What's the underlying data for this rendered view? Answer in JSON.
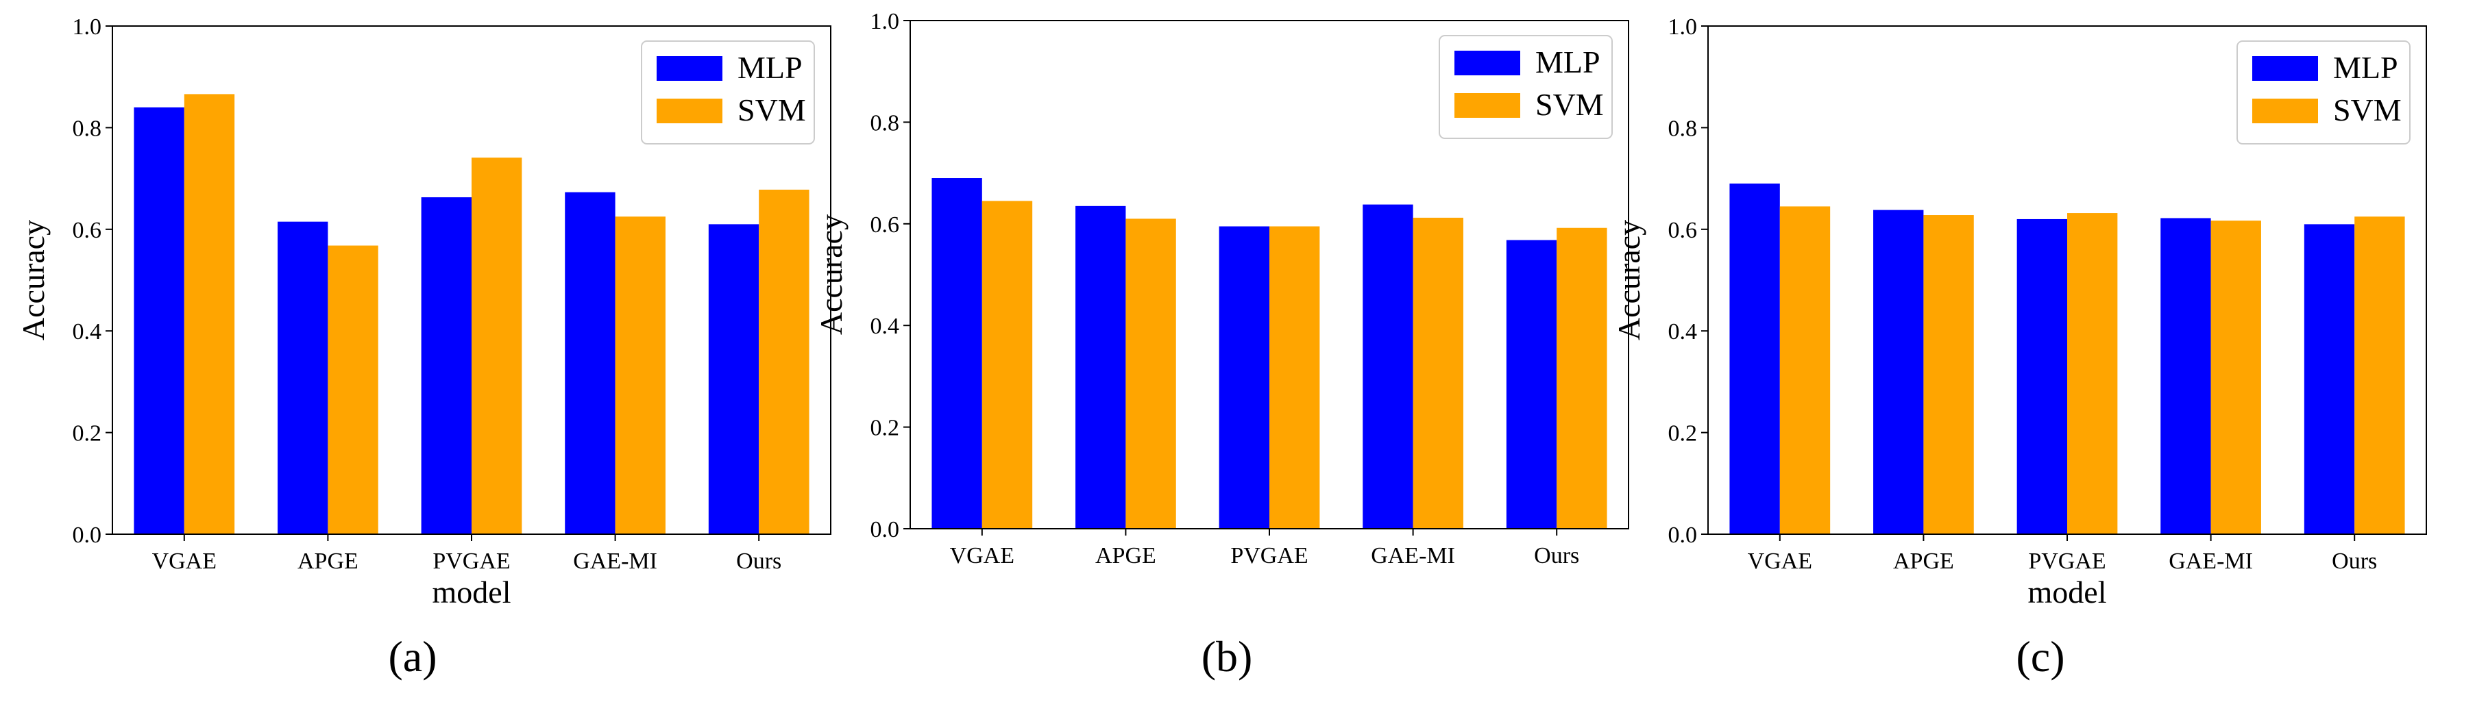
{
  "chart_data": [
    {
      "type": "bar",
      "caption": "(a)",
      "categories": [
        "VGAE",
        "APGE",
        "PVGAE",
        "GAE-MI",
        "Ours"
      ],
      "series": [
        {
          "name": "MLP",
          "values": [
            0.84,
            0.615,
            0.663,
            0.673,
            0.61
          ]
        },
        {
          "name": "SVM",
          "values": [
            0.866,
            0.568,
            0.741,
            0.625,
            0.678
          ]
        }
      ],
      "xlabel": "model",
      "ylabel": "Accuracy",
      "ylim": [
        0,
        1.0
      ],
      "yticks": [
        "0.0",
        "0.2",
        "0.4",
        "0.6",
        "0.8",
        "1.0"
      ],
      "legend_position": "top-right"
    },
    {
      "type": "bar",
      "caption": "(b)",
      "categories": [
        "VGAE",
        "APGE",
        "PVGAE",
        "GAE-MI",
        "Ours"
      ],
      "series": [
        {
          "name": "MLP",
          "values": [
            0.69,
            0.635,
            0.595,
            0.638,
            0.568
          ]
        },
        {
          "name": "SVM",
          "values": [
            0.645,
            0.61,
            0.595,
            0.612,
            0.592
          ]
        }
      ],
      "xlabel": "",
      "ylabel": "Accuracy",
      "ylim": [
        0,
        1.0
      ],
      "yticks": [
        "0.0",
        "0.2",
        "0.4",
        "0.6",
        "0.8",
        "1.0"
      ],
      "legend_position": "top-right"
    },
    {
      "type": "bar",
      "caption": "(c)",
      "categories": [
        "VGAE",
        "APGE",
        "PVGAE",
        "GAE-MI",
        "Ours"
      ],
      "series": [
        {
          "name": "MLP",
          "values": [
            0.69,
            0.638,
            0.62,
            0.622,
            0.61
          ]
        },
        {
          "name": "SVM",
          "values": [
            0.645,
            0.628,
            0.632,
            0.617,
            0.625
          ]
        }
      ],
      "xlabel": "model",
      "ylabel": "Accuracy",
      "ylim": [
        0,
        1.0
      ],
      "yticks": [
        "0.0",
        "0.2",
        "0.4",
        "0.6",
        "0.8",
        "1.0"
      ],
      "legend_position": "top-right"
    }
  ],
  "colors": {
    "series": [
      "#0000ff",
      "#ffa500"
    ],
    "frame": "#000000",
    "legend_border": "#cccccc"
  }
}
